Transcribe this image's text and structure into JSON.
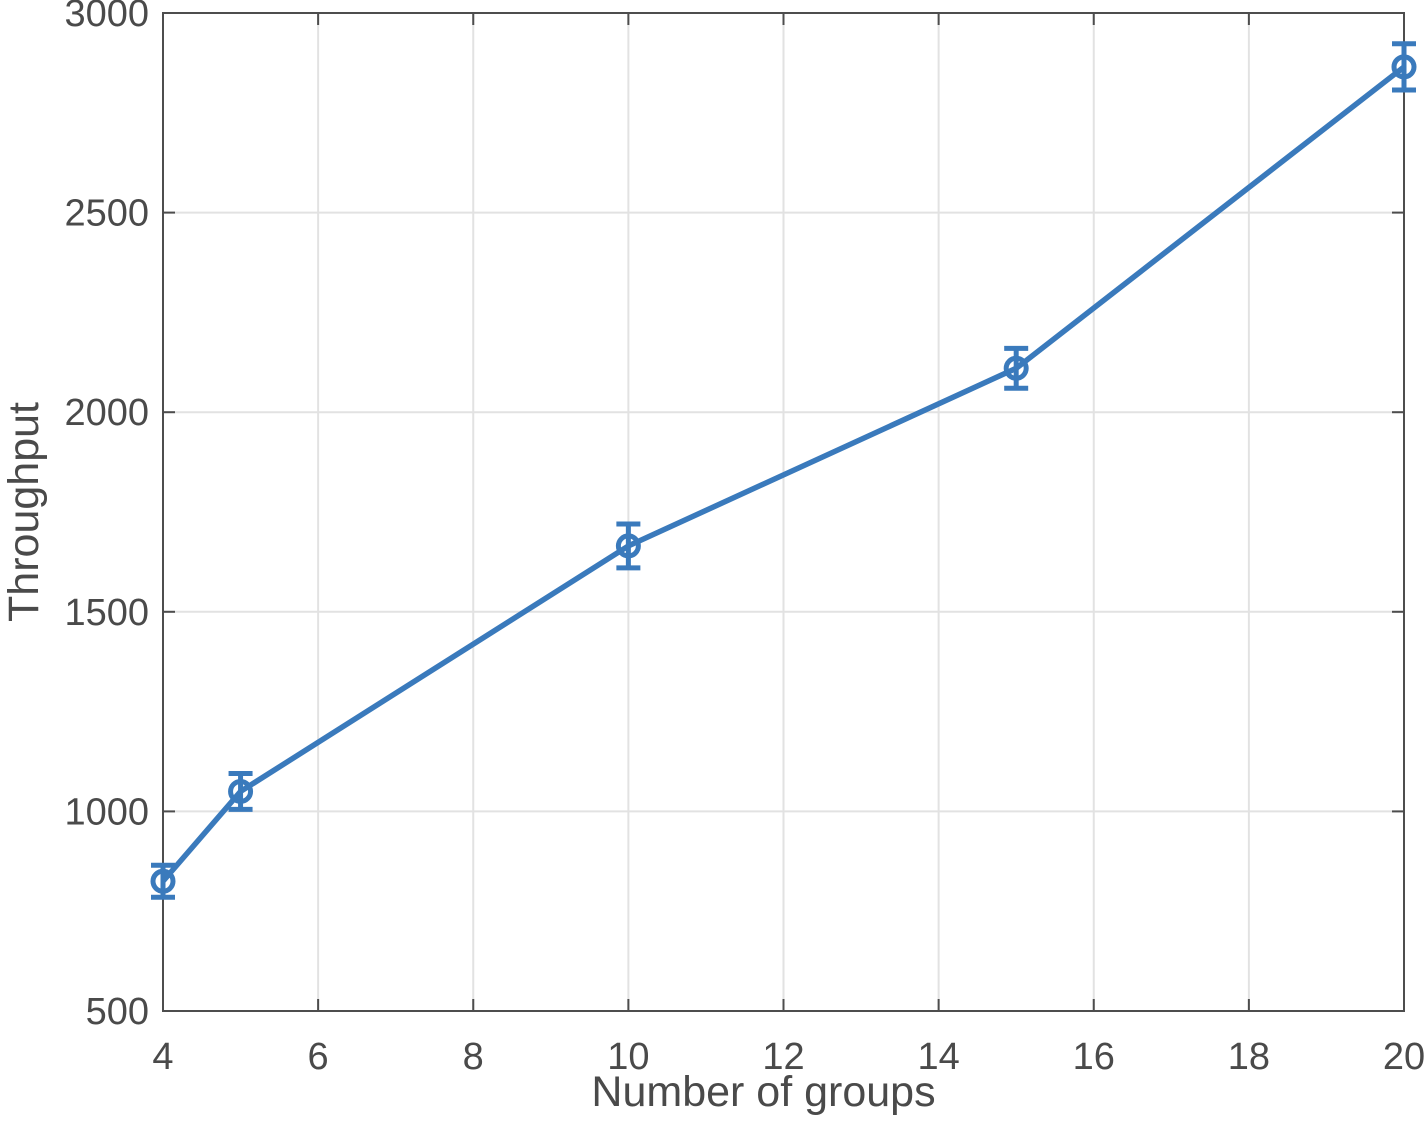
{
  "figure": {
    "background": "#FFFFFF"
  },
  "chart_data": {
    "type": "line",
    "title": "",
    "xlabel": "Number of groups",
    "ylabel": "Throughput",
    "xlim": [
      4,
      20
    ],
    "ylim": [
      500,
      3000
    ],
    "xticks": [
      4,
      6,
      8,
      10,
      12,
      14,
      16,
      18,
      20
    ],
    "yticks": [
      500,
      1000,
      1500,
      2000,
      2500,
      3000
    ],
    "grid": true,
    "box": true,
    "legend": "none",
    "series": [
      {
        "name": "Throughput",
        "x": [
          4,
          5,
          10,
          15,
          20
        ],
        "y": [
          825,
          1050,
          1665,
          2110,
          2865
        ],
        "yerr": [
          40,
          45,
          55,
          50,
          58
        ],
        "marker": "open-circle",
        "line_style": "solid"
      }
    ],
    "colors": {
      "line": "#3A7ABC",
      "axis": "#4D4D4D",
      "grid": "#E2E2E2",
      "tick_label": "#4A4A4A",
      "axis_label": "#4A4A4A",
      "background": "#FFFFFF"
    }
  }
}
